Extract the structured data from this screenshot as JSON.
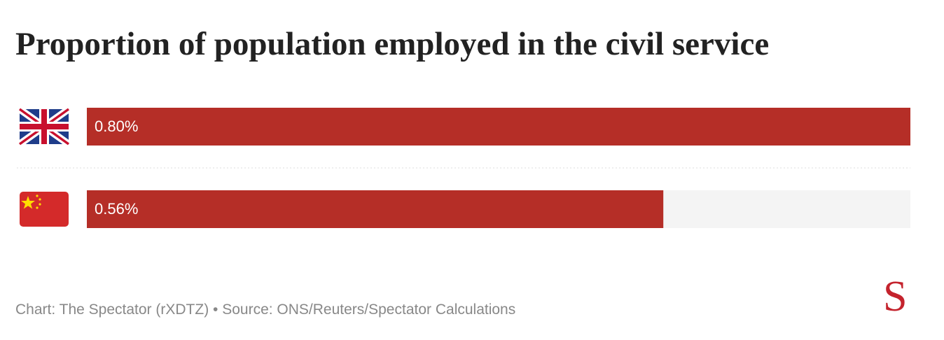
{
  "chart_data": {
    "type": "bar",
    "orientation": "horizontal",
    "title": "Proportion of population employed in the civil service",
    "categories": [
      null,
      null
    ],
    "values": [
      0.8,
      0.56
    ],
    "value_labels": [
      "0.80%",
      "0.56%"
    ],
    "color": "#b52e27",
    "xlim": [
      0,
      0.8
    ],
    "footer": "Chart: The Spectator (rXDTZ) • Source: ONS/Reuters/Spectator Calculations",
    "logo": "S"
  }
}
